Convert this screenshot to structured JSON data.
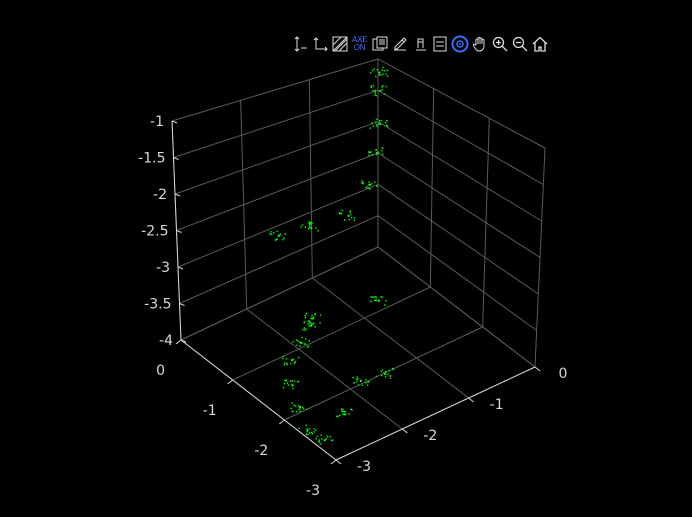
{
  "toolbar": {
    "buttons": [
      {
        "name": "axis-z-arrows-icon",
        "label": ""
      },
      {
        "name": "axis-xy-arrows-icon",
        "label": ""
      },
      {
        "name": "hatched-box-icon",
        "label": ""
      },
      {
        "name": "axes-on-toggle",
        "label_top": "AXE",
        "label_bottom": "ON"
      },
      {
        "name": "copy-figure-icon",
        "label": ""
      },
      {
        "name": "edit-plot-icon",
        "label": ""
      },
      {
        "name": "brush-icon",
        "label": ""
      },
      {
        "name": "legend-icon",
        "label": ""
      },
      {
        "name": "rotate-3d-icon",
        "label": ""
      },
      {
        "name": "pan-hand-icon",
        "label": ""
      },
      {
        "name": "zoom-in-icon",
        "label": ""
      },
      {
        "name": "zoom-out-icon",
        "label": ""
      },
      {
        "name": "home-icon",
        "label": ""
      }
    ],
    "active": "rotate-3d-icon",
    "accent_color": "#3a6dff"
  },
  "axes": {
    "z_ticks": [
      "-1",
      "-1.5",
      "-2",
      "-2.5",
      "-3",
      "-3.5",
      "-4"
    ],
    "left_ticks": [
      "0",
      "-1",
      "-2",
      "-3"
    ],
    "right_ticks": [
      "-3",
      "-2",
      "-1",
      "0"
    ],
    "grid": true,
    "background": "#000000",
    "axis_color": "#d8d8d8",
    "grid_color": "#5a5a5a"
  },
  "chart_data": {
    "type": "scatter",
    "marker_color": "#00ff00",
    "x": [
      -1.5,
      -1.6,
      -1.9,
      -2.2,
      -2.5,
      -2.7,
      -2.9,
      -2.95,
      -2.8,
      -2.6,
      -1.7,
      -1.3,
      -0.8,
      -0.4,
      -0.2,
      -0.1,
      -0.05,
      -0.1,
      -2.2,
      -1.9
    ],
    "y": [
      -0.6,
      -0.7,
      -0.9,
      -1.1,
      -1.5,
      -1.9,
      -2.3,
      -2.7,
      -2.9,
      -2.95,
      -0.2,
      -0.3,
      -0.4,
      -0.3,
      -0.2,
      -0.1,
      -0.05,
      -0.1,
      -2.9,
      -2.4
    ],
    "z": [
      -4.0,
      -4.0,
      -4.0,
      -4.0,
      -4.0,
      -4.0,
      -4.0,
      -3.9,
      -3.5,
      -3.1,
      -3.0,
      -3.0,
      -3.0,
      -2.8,
      -2.5,
      -2.2,
      -1.8,
      -1.5,
      -3.2,
      -2.6
    ],
    "zlim": [
      -4,
      -1
    ],
    "xlim": [
      -3,
      0
    ],
    "ylim": [
      -3,
      0
    ]
  }
}
